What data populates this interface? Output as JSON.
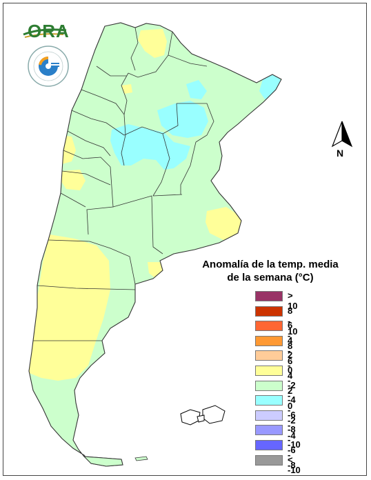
{
  "logo": {
    "name": "ORA",
    "seal_text": "SERVICIO METEOROLÓGICO NACIONAL ARGENTINA"
  },
  "north_label": "N",
  "legend": {
    "title_line1": "Anomalía de la temp. media",
    "title_line2": "de la semana (°C)",
    "items": [
      {
        "label": "> 10",
        "color": "#993366"
      },
      {
        "label": "8 - 10",
        "color": "#cc3300"
      },
      {
        "label": "6 - 8",
        "color": "#ff6633"
      },
      {
        "label": "4 - 6",
        "color": "#ff9933"
      },
      {
        "label": "2 - 4",
        "color": "#ffcc99"
      },
      {
        "label": "0 - 2",
        "color": "#ffff99"
      },
      {
        "label": "-2 - 0",
        "color": "#ccffcc"
      },
      {
        "label": "-4 - -2",
        "color": "#99ffff"
      },
      {
        "label": "-6 - -4",
        "color": "#ccccff"
      },
      {
        "label": "-8 - -6",
        "color": "#9999ff"
      },
      {
        "label": "-10 - -8",
        "color": "#6666ff"
      },
      {
        "label": "< -10",
        "color": "#999999"
      }
    ]
  },
  "colors": {
    "base": "#ccffcc",
    "warm": "#ffff99",
    "cool": "#99ffff",
    "border": "#333333"
  }
}
